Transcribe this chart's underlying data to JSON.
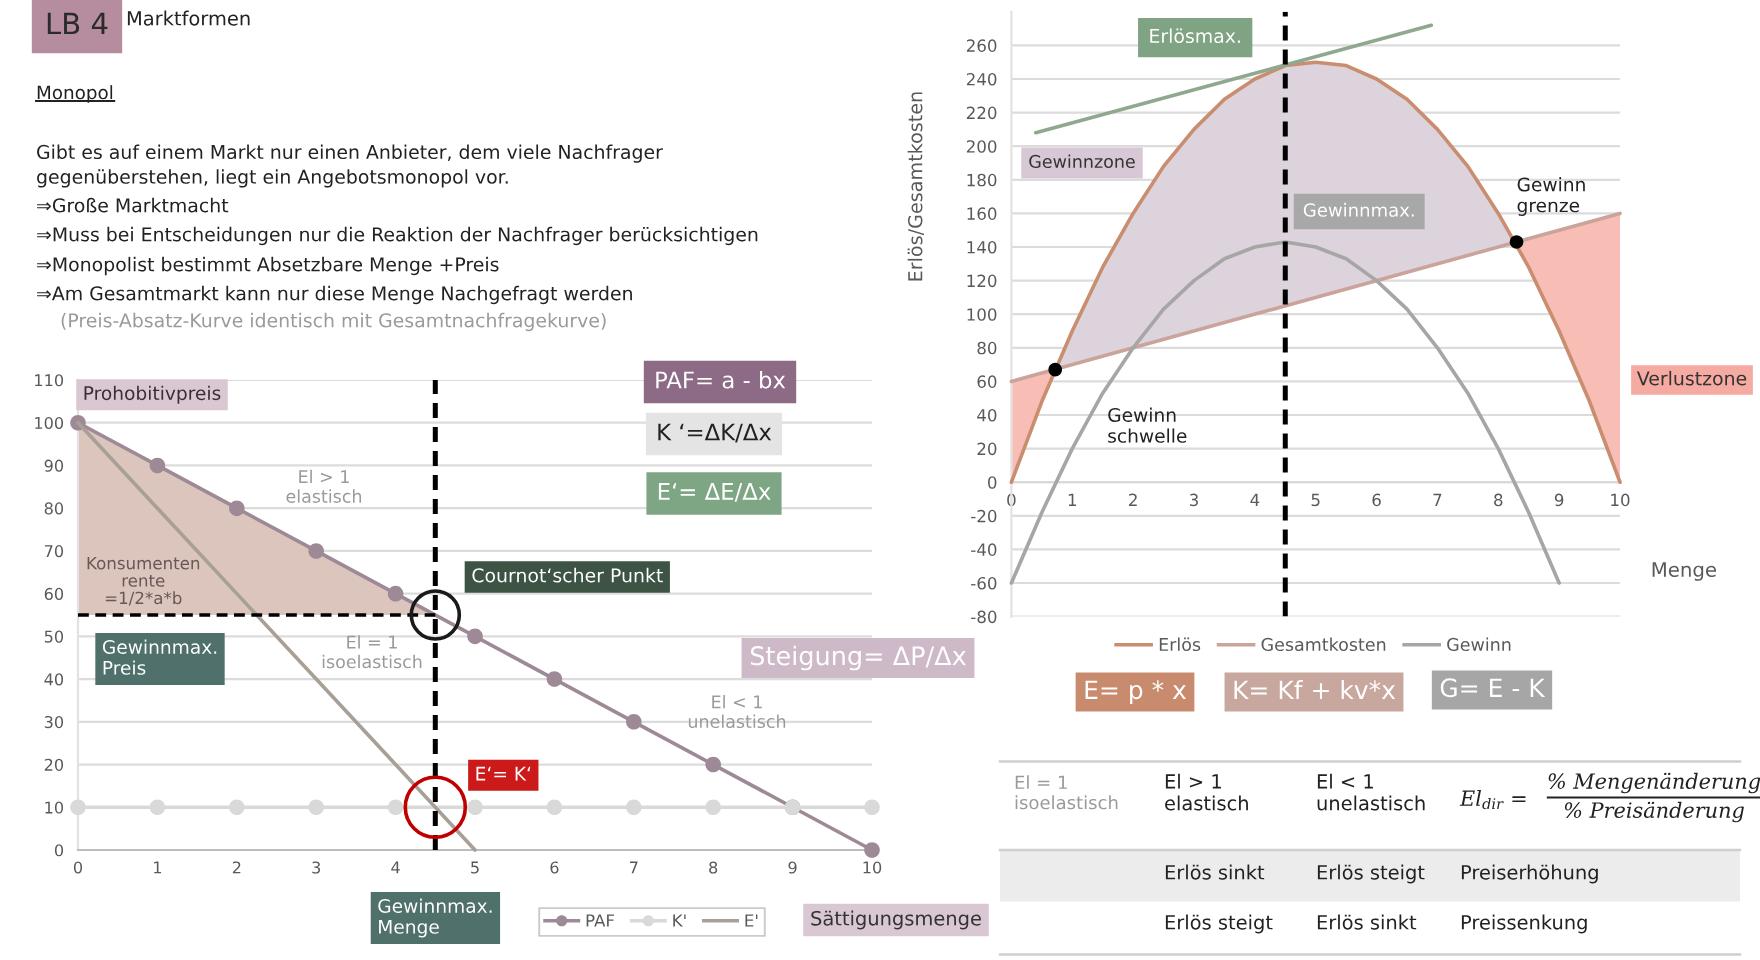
{
  "chart_data": [
    {
      "type": "line",
      "title": "Marktformen",
      "subtitle": "Monopol",
      "x": [
        0,
        1,
        2,
        3,
        4,
        5,
        6,
        7,
        8,
        9,
        10
      ],
      "series": [
        {
          "name": "PAF",
          "color": "#9d8a96",
          "marker": "circle",
          "values": [
            100,
            90,
            80,
            70,
            60,
            50,
            40,
            30,
            20,
            10,
            0
          ]
        },
        {
          "name": "K'",
          "color": "#d9d9d9",
          "marker": "circle",
          "values": [
            10,
            10,
            10,
            10,
            10,
            10,
            10,
            10,
            10,
            10,
            10
          ]
        },
        {
          "name": "E'",
          "color": "#a89f97",
          "x": [
            0,
            1,
            2,
            3,
            4,
            5
          ],
          "values": [
            100,
            80,
            60,
            40,
            20,
            0
          ]
        },
        {
          "color": "#000000",
          "line_style": "dashed",
          "x": [
            0,
            4.5
          ],
          "values": [
            55,
            55
          ],
          "lower": [
            55,
            55
          ],
          "upper": [
            100,
            55
          ]
        }
      ],
      "xlim": [
        0,
        10
      ],
      "xticks": [
        0,
        1,
        2,
        3,
        4,
        5,
        6,
        7,
        8,
        9,
        10
      ],
      "ylim": [
        0,
        110
      ],
      "yticks": [
        0,
        10,
        20,
        30,
        40,
        50,
        60,
        70,
        80,
        90,
        100,
        110
      ],
      "grid": "y",
      "legend": "bottom",
      "ref_lines": [
        {
          "axis": "x",
          "value": 4.5,
          "color": "#000000",
          "line_style": "dashed"
        }
      ],
      "annotations": [
        "LB 4",
        "Gibt es auf einem Markt nur einen Anbieter, dem viele Nachfrager\ngegenüberstehen, liegt ein Angebotsmonopol vor.",
        "⇒Große Marktmacht",
        "⇒Muss bei Entscheidungen nur die Reaktion der Nachfrager berücksichtigen",
        "⇒Monopolist bestimmt Absetzbare Menge +Preis",
        "⇒Am Gesamtmarkt kann nur diese Menge Nachgefragt werden",
        "(Preis-Absatz-Kurve identisch mit Gesamtnachfragekurve)",
        {
          "text": "Prohobitivpreis",
          "x": 0,
          "y": 100
        },
        "El > 1\nelastisch",
        "Konsumenten\nrente\n=1/2*a*b",
        "PAF= a - bx",
        "K ‘=ΔK/Δx",
        "E‘= ΔE/Δx",
        {
          "text": "Cournot‘scher Punkt",
          "x": 4.5,
          "y": 55
        },
        "Gewinnmax.\nPreis",
        "El = 1\nisoelastisch",
        "Steigung= ΔP/Δx",
        "El < 1\nunelastisch",
        {
          "text": "E‘= K‘",
          "x": 4.5,
          "y": 10
        },
        "Gewinnmax.\nMenge",
        "Sättigungsmenge"
      ]
    },
    {
      "type": "line",
      "xlabel": "Menge",
      "ylabel": "Erlös/Gesamtkosten",
      "series": [
        {
          "type": "area",
          "x": [
            0.72,
            1,
            1.5,
            2,
            2.5,
            3,
            3.5,
            4,
            4.5,
            5,
            5.5,
            6,
            6.5,
            7,
            7.5,
            8,
            8.3,
            8,
            7.5,
            7,
            6.5,
            6,
            5.5,
            5,
            4.5,
            4,
            3.5,
            3,
            2.5,
            2,
            1.5,
            1
          ],
          "values": [
            67,
            90,
            128,
            160,
            188,
            210,
            228,
            240,
            248,
            250,
            248,
            240,
            228,
            210,
            188,
            160,
            143,
            140,
            135,
            130,
            125,
            120,
            115,
            110,
            105,
            100,
            95,
            90,
            85,
            80,
            75,
            70
          ],
          "color": "#ddd3dd"
        },
        {
          "type": "area",
          "x": [
            0,
            0.5,
            0.72,
            0.5,
            0
          ],
          "values": [
            60,
            65,
            67,
            48,
            0
          ],
          "color": "#f8beb6"
        },
        {
          "type": "area",
          "x": [
            8.3,
            8.5,
            9,
            9.5,
            10,
            10,
            9.5,
            9,
            8.5
          ],
          "values": [
            143,
            145,
            150,
            155,
            160,
            0,
            48,
            90,
            128
          ],
          "color": "#f8beb6"
        },
        {
          "name": "Erlös",
          "color": "#c98d70",
          "x": [
            0,
            0.5,
            1,
            1.5,
            2,
            2.5,
            3,
            3.5,
            4,
            4.5,
            5,
            5.5,
            6,
            6.5,
            7,
            7.5,
            8,
            8.5,
            9,
            9.5,
            10
          ],
          "values": [
            0,
            48,
            90,
            128,
            160,
            188,
            210,
            228,
            240,
            248,
            250,
            248,
            240,
            228,
            210,
            188,
            160,
            128,
            90,
            48,
            0
          ]
        },
        {
          "name": "Gesamtkosten",
          "color": "#caa39a",
          "x": [
            0,
            10
          ],
          "values": [
            60,
            160
          ]
        },
        {
          "name": "Gewinn",
          "color": "#a6a6a6",
          "x": [
            0,
            0.5,
            1,
            1.5,
            2,
            2.5,
            3,
            3.5,
            4,
            4.5,
            5,
            5.5,
            6,
            6.5,
            7,
            7.5,
            8,
            8.5,
            9
          ],
          "values": [
            -60,
            -18,
            20,
            53,
            80,
            103,
            120,
            133,
            140,
            143,
            140,
            133,
            120,
            103,
            80,
            53,
            20,
            -18,
            -60
          ]
        },
        {
          "color": "#8fa88f",
          "x": [
            0.4,
            6.9
          ],
          "values": [
            208,
            272
          ]
        },
        {
          "type": "scatter",
          "color": "#000000",
          "marker": "circle",
          "x": [
            0.72,
            8.3
          ],
          "values": [
            67,
            143
          ]
        }
      ],
      "xlim": [
        0,
        10
      ],
      "xticks": [
        0,
        1,
        2,
        3,
        4,
        5,
        6,
        7,
        8,
        9,
        10
      ],
      "ylim": [
        -80,
        280
      ],
      "yticks": [
        -80,
        -60,
        -40,
        -20,
        0,
        20,
        40,
        60,
        80,
        100,
        120,
        140,
        160,
        180,
        200,
        220,
        240,
        260
      ],
      "grid": "y",
      "legend": "bottom",
      "ref_lines": [
        {
          "axis": "x",
          "value": 4.5,
          "color": "#000000",
          "line_style": "dashed"
        }
      ],
      "annotations": [
        "Erlösmax.",
        "Gewinnmax.",
        "Gewinnzone",
        "Gewinn\nschwelle",
        {
          "text": "Gewinn\ngrenze",
          "x": 8.3,
          "y": 143
        },
        "Verlustzone",
        "E= p * x",
        "K= Kf + kv*x",
        "G= E - K",
        "El = 1\nisoelastisch",
        "El > 1\nelastisch",
        "El < 1\nunelastisch",
        "El$_{dir}$ =",
        "% Mengenänderung",
        "% Preisänderung",
        "Erlös sinkt",
        "Erlös steigt",
        "Preiserhöhung",
        "Erlös steigt",
        "Erlös sinkt",
        "Preissenkung"
      ]
    }
  ]
}
